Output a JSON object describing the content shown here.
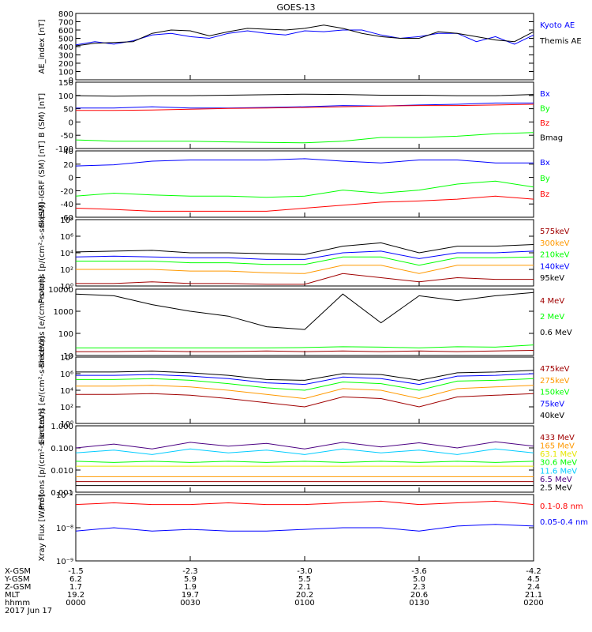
{
  "title": "GOES-13",
  "colors": {
    "black": "#000000",
    "blue": "#0000ff",
    "green": "#00ff00",
    "red": "#ff0000",
    "darkred": "#a00000",
    "orange": "#ff9900",
    "teal": "#00b3b3",
    "cyan": "#00ccff",
    "purple": "#4b0082",
    "yellow": "#e6e600"
  },
  "footer": {
    "row_labels": [
      "X-GSM",
      "Y-GSM",
      "Z-GSM",
      "MLT",
      "hhmm",
      "2017 Jun 17"
    ],
    "columns": [
      [
        "-1.5",
        "6.2",
        "1.7",
        "19.2",
        "0000"
      ],
      [
        "-2.3",
        "5.9",
        "1.9",
        "19.7",
        "0030"
      ],
      [
        "-3.0",
        "5.5",
        "2.1",
        "20.2",
        "0100"
      ],
      [
        "-3.6",
        "5.0",
        "2.3",
        "20.6",
        "0130"
      ],
      [
        "-4.2",
        "4.5",
        "2.4",
        "21.1",
        "0200"
      ]
    ]
  },
  "chart_data": [
    {
      "type": "line",
      "ylabel": "AE_index [nT]",
      "ylim": [
        0,
        800
      ],
      "yticks": [
        "0",
        "100",
        "200",
        "300",
        "400",
        "500",
        "600",
        "700",
        "800"
      ],
      "yscale": "linear",
      "x": [
        0,
        5,
        10,
        15,
        20,
        25,
        30,
        35,
        40,
        45,
        50,
        55,
        60,
        65,
        70,
        75,
        80,
        85,
        90,
        95,
        100,
        105,
        110,
        115,
        120
      ],
      "series": [
        {
          "name": "Kyoto AE",
          "color": "blue",
          "values": [
            420,
            460,
            430,
            470,
            540,
            560,
            520,
            500,
            560,
            590,
            560,
            540,
            590,
            580,
            600,
            600,
            540,
            500,
            520,
            560,
            560,
            460,
            520,
            430,
            540
          ]
        },
        {
          "name": "Themis AE",
          "color": "black",
          "values": [
            410,
            440,
            450,
            460,
            560,
            600,
            590,
            530,
            580,
            620,
            610,
            600,
            620,
            660,
            620,
            560,
            520,
            500,
            500,
            580,
            560,
            520,
            480,
            460,
            580
          ]
        }
      ]
    },
    {
      "type": "line",
      "ylabel": "B (SM) [nT]",
      "ylim": [
        -115,
        155
      ],
      "yticks": [
        "-100",
        "-50",
        "0",
        "50",
        "100",
        "150"
      ],
      "yscale": "linear",
      "x": [
        0,
        10,
        20,
        30,
        40,
        50,
        60,
        70,
        80,
        90,
        100,
        110,
        120
      ],
      "series": [
        {
          "name": "Bx",
          "color": "blue",
          "values": [
            50,
            50,
            55,
            50,
            50,
            52,
            55,
            60,
            58,
            62,
            65,
            70,
            70
          ]
        },
        {
          "name": "By",
          "color": "green",
          "values": [
            -80,
            -85,
            -85,
            -85,
            -88,
            -90,
            -92,
            -85,
            -70,
            -70,
            -65,
            -55,
            -50
          ]
        },
        {
          "name": "Bz",
          "color": "red",
          "values": [
            40,
            40,
            42,
            45,
            48,
            50,
            52,
            55,
            58,
            60,
            60,
            62,
            65
          ]
        },
        {
          "name": "Bmag",
          "color": "black",
          "values": [
            100,
            98,
            100,
            100,
            102,
            104,
            106,
            105,
            102,
            102,
            100,
            100,
            105
          ]
        }
      ]
    },
    {
      "type": "line",
      "ylabel": "B (SM)-IGRF (SM) [nT]",
      "ylim": [
        -65,
        45
      ],
      "yticks": [
        "-60",
        "-40",
        "-20",
        "0",
        "20",
        "40"
      ],
      "yscale": "linear",
      "x": [
        0,
        10,
        20,
        30,
        40,
        50,
        60,
        70,
        80,
        90,
        100,
        110,
        120
      ],
      "series": [
        {
          "name": "Bx",
          "color": "blue",
          "values": [
            20,
            22,
            28,
            30,
            30,
            30,
            32,
            28,
            25,
            30,
            30,
            25,
            25
          ]
        },
        {
          "name": "By",
          "color": "green",
          "values": [
            -30,
            -25,
            -28,
            -30,
            -30,
            -32,
            -30,
            -20,
            -25,
            -20,
            -10,
            -5,
            -15
          ]
        },
        {
          "name": "Bz",
          "color": "red",
          "values": [
            -50,
            -52,
            -55,
            -55,
            -55,
            -55,
            -50,
            -45,
            -40,
            -38,
            -35,
            -30,
            -35
          ]
        }
      ]
    },
    {
      "type": "line",
      "ylabel": "Protons [p/(cm²-s-sr-keV)]",
      "ylim": [
        0,
        8
      ],
      "yscale": "log",
      "yticks": [
        "10⁰",
        "10²",
        "10⁴",
        "10⁶",
        "10⁸"
      ],
      "x": [
        0,
        10,
        20,
        30,
        40,
        50,
        60,
        70,
        80,
        90,
        100,
        110,
        120
      ],
      "series": [
        {
          "name": "575keV",
          "color": "darkred",
          "values": [
            0.3,
            0.3,
            0.5,
            0.3,
            0.3,
            0.2,
            0.2,
            1.5,
            1.0,
            0.5,
            1.0,
            0.8,
            0.8
          ]
        },
        {
          "name": "300keV",
          "color": "orange",
          "values": [
            2.0,
            2.0,
            2.0,
            1.8,
            1.8,
            1.6,
            1.5,
            2.5,
            2.5,
            1.5,
            2.5,
            2.5,
            2.5
          ]
        },
        {
          "name": "210keV",
          "color": "green",
          "values": [
            3.0,
            3.0,
            3.0,
            2.8,
            2.8,
            2.6,
            2.6,
            3.5,
            3.5,
            2.5,
            3.4,
            3.4,
            3.5
          ]
        },
        {
          "name": "140keV",
          "color": "blue",
          "values": [
            3.5,
            3.6,
            3.5,
            3.4,
            3.4,
            3.2,
            3.2,
            4.0,
            4.2,
            3.3,
            4.0,
            4.0,
            4.2
          ]
        },
        {
          "name": "95keV",
          "color": "black",
          "values": [
            4.1,
            4.2,
            4.3,
            4.0,
            4.0,
            3.9,
            3.8,
            4.8,
            5.2,
            4.0,
            4.8,
            4.8,
            5.0
          ]
        }
      ]
    },
    {
      "type": "line",
      "ylabel": "Electrons [e/(cm²-s-sr)]",
      "ylim": [
        10,
        10000
      ],
      "yscale": "log",
      "yticks": [
        "10",
        "100",
        "1000",
        "10000"
      ],
      "x": [
        0,
        10,
        20,
        30,
        40,
        50,
        60,
        70,
        80,
        90,
        100,
        110,
        120
      ],
      "series": [
        {
          "name": "4 MeV",
          "color": "darkred",
          "values": [
            15,
            15,
            16,
            15,
            15,
            16,
            15,
            16,
            15,
            16,
            15,
            16,
            17
          ]
        },
        {
          "name": "2 MeV",
          "color": "green",
          "values": [
            22,
            22,
            22,
            22,
            22,
            22,
            23,
            25,
            24,
            22,
            25,
            24,
            30
          ]
        },
        {
          "name": "0.6 MeV",
          "color": "black",
          "values": [
            6000,
            5000,
            2000,
            1000,
            600,
            200,
            150,
            6000,
            300,
            5000,
            3000,
            5000,
            7000
          ]
        }
      ]
    },
    {
      "type": "line",
      "ylabel": "Electrons [e/(cm²-s-sr-keV)]",
      "ylim": [
        0,
        8
      ],
      "yscale": "log",
      "yticks": [
        "10⁰",
        "10²",
        "10⁴",
        "10⁶",
        "10⁸"
      ],
      "x": [
        0,
        10,
        20,
        30,
        40,
        50,
        60,
        70,
        80,
        90,
        100,
        110,
        120
      ],
      "series": [
        {
          "name": "475keV",
          "color": "darkred",
          "values": [
            3.5,
            3.5,
            3.6,
            3.4,
            3.0,
            2.5,
            2.0,
            3.2,
            3.0,
            2.0,
            3.2,
            3.4,
            3.6
          ]
        },
        {
          "name": "275keV",
          "color": "orange",
          "values": [
            4.5,
            4.5,
            4.6,
            4.4,
            4.0,
            3.5,
            3.0,
            4.2,
            4.0,
            3.0,
            4.2,
            4.4,
            4.6
          ]
        },
        {
          "name": "150keV",
          "color": "green",
          "values": [
            5.3,
            5.3,
            5.4,
            5.2,
            4.8,
            4.3,
            4.0,
            5.0,
            4.8,
            4.0,
            5.1,
            5.2,
            5.4
          ]
        },
        {
          "name": "75keV",
          "color": "blue",
          "values": [
            5.8,
            5.8,
            5.9,
            5.7,
            5.4,
            4.9,
            4.7,
            5.6,
            5.4,
            4.7,
            5.7,
            5.8,
            6.0
          ]
        },
        {
          "name": "40keV",
          "color": "black",
          "values": [
            6.2,
            6.2,
            6.3,
            6.1,
            5.8,
            5.3,
            5.2,
            6.0,
            5.9,
            5.2,
            6.1,
            6.2,
            6.4
          ]
        }
      ]
    },
    {
      "type": "line",
      "ylabel": "Protons [p/(cm²-s-sr-keV)]",
      "ylim": [
        0.001,
        1.0
      ],
      "yscale": "log",
      "yticks": [
        "0.001",
        "0.010",
        "0.100",
        "1.000"
      ],
      "x": [
        0,
        10,
        20,
        30,
        40,
        50,
        60,
        70,
        80,
        90,
        100,
        110,
        120
      ],
      "series": [
        {
          "name": "433 MeV",
          "color": "darkred",
          "values": [
            0.003,
            0.003,
            0.003,
            0.003,
            0.003,
            0.003,
            0.003,
            0.003,
            0.003,
            0.003,
            0.003,
            0.003,
            0.003
          ]
        },
        {
          "name": "165 MeV",
          "color": "orange",
          "values": [
            0.005,
            0.005,
            0.005,
            0.005,
            0.005,
            0.005,
            0.005,
            0.005,
            0.005,
            0.005,
            0.005,
            0.005,
            0.005
          ]
        },
        {
          "name": "63.1 MeV",
          "color": "yellow",
          "values": [
            0.015,
            0.015,
            0.015,
            0.015,
            0.015,
            0.015,
            0.015,
            0.015,
            0.015,
            0.015,
            0.015,
            0.015,
            0.015
          ]
        },
        {
          "name": "30.6 MeV",
          "color": "green",
          "values": [
            0.025,
            0.022,
            0.025,
            0.022,
            0.025,
            0.022,
            0.025,
            0.022,
            0.025,
            0.022,
            0.025,
            0.022,
            0.025
          ]
        },
        {
          "name": "11.6 MeV",
          "color": "cyan",
          "values": [
            0.06,
            0.08,
            0.05,
            0.09,
            0.06,
            0.08,
            0.05,
            0.09,
            0.06,
            0.08,
            0.05,
            0.09,
            0.06
          ]
        },
        {
          "name": "6.5 MeV",
          "color": "purple",
          "values": [
            0.1,
            0.15,
            0.09,
            0.18,
            0.12,
            0.16,
            0.09,
            0.18,
            0.11,
            0.17,
            0.1,
            0.19,
            0.12
          ]
        },
        {
          "name": "2.5 MeV",
          "color": "black",
          "values": [
            0.002,
            0.002,
            0.002,
            0.002,
            0.002,
            0.002,
            0.002,
            0.002,
            0.002,
            0.002,
            0.002,
            0.002,
            0.002
          ]
        }
      ]
    },
    {
      "type": "line",
      "ylabel": "Xray Flux [W/m²]",
      "ylim": [
        -9,
        -7
      ],
      "yscale": "log",
      "yticks": [
        "10⁻⁹",
        "10⁻⁸",
        "10⁻⁷"
      ],
      "x": [
        0,
        10,
        20,
        30,
        40,
        50,
        60,
        70,
        80,
        90,
        100,
        110,
        120
      ],
      "series": [
        {
          "name": "0.1-0.8 nm",
          "color": "red",
          "values": [
            -7.3,
            -7.25,
            -7.3,
            -7.3,
            -7.25,
            -7.3,
            -7.3,
            -7.25,
            -7.2,
            -7.3,
            -7.25,
            -7.2,
            -7.3
          ]
        },
        {
          "name": "0.05-0.4 nm",
          "color": "blue",
          "values": [
            -8.1,
            -8.0,
            -8.1,
            -8.05,
            -8.1,
            -8.1,
            -8.05,
            -8.0,
            -8.0,
            -8.1,
            -7.95,
            -7.9,
            -7.95
          ]
        }
      ]
    }
  ]
}
